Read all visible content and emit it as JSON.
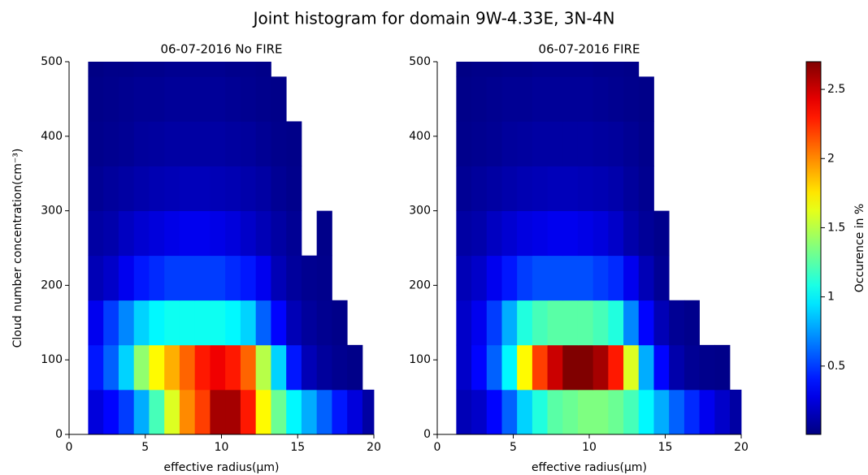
{
  "title": "Joint histogram for domain 9W-4.33E, 3N-4N",
  "colorbar": {
    "label": "Occurence in %",
    "clim": [
      0.006,
      2.7
    ],
    "ticks": [
      0.5,
      1.0,
      1.5,
      2.0,
      2.5
    ],
    "colormap": "jet"
  },
  "chart_data": [
    {
      "type": "heatmap",
      "title": "06-07-2016 No FIRE",
      "xlabel": "effective radius(μm)",
      "ylabel": "Cloud number concentration(cm⁻³)",
      "xlim": [
        0,
        20
      ],
      "ylim": [
        0,
        500
      ],
      "xticks": [
        0,
        5,
        10,
        15,
        20
      ],
      "yticks": [
        0,
        100,
        200,
        300,
        400,
        500
      ],
      "xbins": [
        1.25,
        2.25,
        3.25,
        4.25,
        5.25,
        6.25,
        7.25,
        8.25,
        9.25,
        10.25,
        11.25,
        12.25,
        13.25,
        14.25,
        15.25,
        16.25,
        17.25,
        18.25,
        19.25,
        20
      ],
      "ybins": [
        0,
        60,
        120,
        180,
        240,
        300,
        360,
        420,
        480,
        500
      ],
      "z": [
        [
          0.25,
          0.35,
          0.5,
          0.8,
          1.2,
          1.6,
          2.0,
          2.2,
          2.6,
          2.6,
          2.3,
          1.7,
          1.3,
          1.0,
          0.8,
          0.6,
          0.4,
          0.25,
          0.1
        ],
        [
          0.4,
          0.6,
          0.9,
          1.4,
          1.7,
          1.9,
          2.1,
          2.3,
          2.4,
          2.3,
          2.1,
          1.5,
          0.9,
          0.4,
          0.15,
          0.08,
          0.05,
          0.03,
          null
        ],
        [
          0.3,
          0.5,
          0.7,
          0.9,
          1.0,
          1.05,
          1.05,
          1.05,
          1.05,
          1.0,
          0.9,
          0.6,
          0.35,
          0.15,
          0.08,
          0.05,
          0.03,
          null,
          null
        ],
        [
          0.15,
          0.2,
          0.3,
          0.4,
          0.45,
          0.5,
          0.5,
          0.5,
          0.5,
          0.45,
          0.4,
          0.3,
          0.15,
          0.08,
          0.05,
          0.04,
          null,
          null,
          null
        ],
        [
          0.1,
          0.12,
          0.18,
          0.22,
          0.25,
          0.28,
          0.3,
          0.3,
          0.28,
          0.25,
          0.2,
          0.15,
          0.1,
          0.06,
          null,
          0.03,
          null,
          null,
          null
        ],
        [
          0.06,
          0.08,
          0.1,
          0.12,
          0.14,
          0.15,
          0.16,
          0.16,
          0.15,
          0.14,
          0.12,
          0.1,
          0.06,
          0.04,
          null,
          null,
          null,
          null,
          null
        ],
        [
          0.04,
          0.05,
          0.06,
          0.08,
          0.09,
          0.1,
          0.1,
          0.1,
          0.1,
          0.09,
          0.08,
          0.06,
          0.04,
          0.03,
          null,
          null,
          null,
          null,
          null
        ],
        [
          0.03,
          0.04,
          0.05,
          0.06,
          0.06,
          0.07,
          0.07,
          0.07,
          0.07,
          0.06,
          0.05,
          0.04,
          0.03,
          null,
          null,
          null,
          null,
          null,
          null
        ],
        [
          0.02,
          0.03,
          0.03,
          0.04,
          0.04,
          0.05,
          0.05,
          0.05,
          0.05,
          0.04,
          0.04,
          0.03,
          null,
          null,
          null,
          null,
          null,
          null,
          null
        ]
      ]
    },
    {
      "type": "heatmap",
      "title": "06-07-2016 FIRE",
      "xlabel": "effective radius(μm)",
      "xlim": [
        0,
        20
      ],
      "ylim": [
        0,
        500
      ],
      "xticks": [
        0,
        5,
        10,
        15,
        20
      ],
      "yticks": [
        0,
        100,
        200,
        300,
        400,
        500
      ],
      "xbins": [
        1.25,
        2.25,
        3.25,
        4.25,
        5.25,
        6.25,
        7.25,
        8.25,
        9.25,
        10.25,
        11.25,
        12.25,
        13.25,
        14.25,
        15.25,
        16.25,
        17.25,
        18.25,
        19.25,
        20
      ],
      "ybins": [
        0,
        60,
        120,
        180,
        240,
        300,
        360,
        420,
        480,
        500
      ],
      "z": [
        [
          0.15,
          0.2,
          0.35,
          0.6,
          0.9,
          1.1,
          1.25,
          1.3,
          1.35,
          1.35,
          1.3,
          1.2,
          1.0,
          0.8,
          0.6,
          0.45,
          0.3,
          0.2,
          0.1
        ],
        [
          0.2,
          0.35,
          0.6,
          1.0,
          1.7,
          2.2,
          2.5,
          2.7,
          2.7,
          2.6,
          2.3,
          1.6,
          0.8,
          0.35,
          0.12,
          0.06,
          0.04,
          0.03,
          null
        ],
        [
          0.2,
          0.3,
          0.5,
          0.8,
          1.1,
          1.2,
          1.25,
          1.25,
          1.25,
          1.2,
          1.1,
          0.7,
          0.35,
          0.15,
          0.06,
          0.04,
          null,
          null,
          null
        ],
        [
          0.15,
          0.2,
          0.3,
          0.4,
          0.5,
          0.55,
          0.55,
          0.55,
          0.55,
          0.5,
          0.45,
          0.3,
          0.15,
          0.06,
          null,
          null,
          null,
          null,
          null
        ],
        [
          0.1,
          0.12,
          0.18,
          0.22,
          0.26,
          0.28,
          0.3,
          0.3,
          0.28,
          0.25,
          0.2,
          0.12,
          0.07,
          0.04,
          null,
          null,
          null,
          null,
          null
        ],
        [
          0.06,
          0.08,
          0.1,
          0.12,
          0.14,
          0.15,
          0.16,
          0.16,
          0.15,
          0.14,
          0.12,
          0.08,
          0.05,
          null,
          null,
          null,
          null,
          null,
          null
        ],
        [
          0.04,
          0.05,
          0.06,
          0.08,
          0.09,
          0.1,
          0.1,
          0.1,
          0.1,
          0.09,
          0.08,
          0.06,
          0.04,
          null,
          null,
          null,
          null,
          null,
          null
        ],
        [
          0.03,
          0.04,
          0.05,
          0.06,
          0.06,
          0.07,
          0.07,
          0.07,
          0.07,
          0.06,
          0.05,
          0.04,
          0.03,
          null,
          null,
          null,
          null,
          null,
          null
        ],
        [
          0.02,
          0.03,
          0.03,
          0.04,
          0.04,
          0.05,
          0.05,
          0.05,
          0.05,
          0.04,
          0.04,
          0.03,
          null,
          null,
          null,
          null,
          null,
          null,
          null
        ]
      ]
    }
  ]
}
